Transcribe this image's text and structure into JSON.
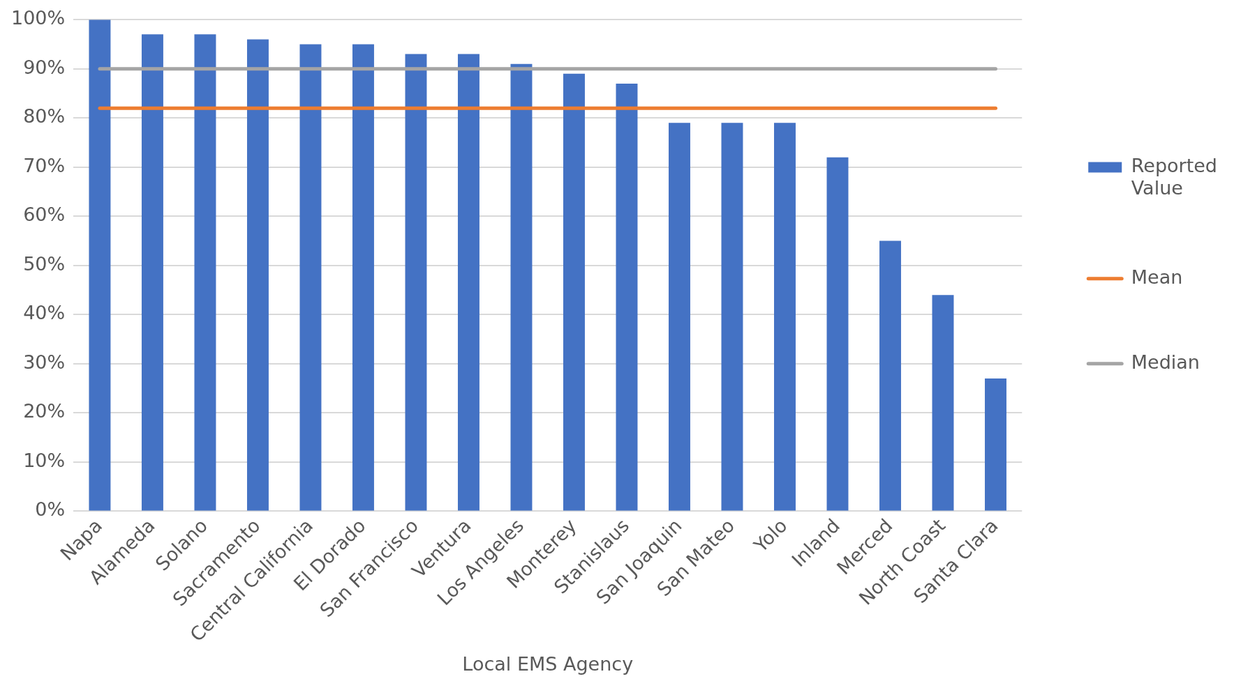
{
  "chart_data": {
    "type": "bar",
    "xlabel": "Local EMS Agency",
    "categories": [
      "Napa",
      "Alameda",
      "Solano",
      "Sacramento",
      "Central California",
      "El Dorado",
      "San Francisco",
      "Ventura",
      "Los Angeles",
      "Monterey",
      "Stanislaus",
      "San Joaquin",
      "San Mateo",
      "Yolo",
      "Inland",
      "Merced",
      "North Coast",
      "Santa Clara"
    ],
    "series": [
      {
        "name": "Reported Value",
        "color": "#4472c4",
        "values": [
          100,
          97,
          97,
          96,
          95,
          95,
          93,
          93,
          91,
          89,
          87,
          79,
          79,
          79,
          72,
          55,
          44,
          27
        ]
      },
      {
        "name": "Mean",
        "type": "line",
        "color": "#ed7d31",
        "values": [
          82,
          82,
          82,
          82,
          82,
          82,
          82,
          82,
          82,
          82,
          82,
          82,
          82,
          82,
          82,
          82,
          82,
          82
        ]
      },
      {
        "name": "Median",
        "type": "line",
        "color": "#a5a5a5",
        "values": [
          90,
          90,
          90,
          90,
          90,
          90,
          90,
          90,
          90,
          90,
          90,
          90,
          90,
          90,
          90,
          90,
          90,
          90
        ]
      }
    ],
    "ylim": [
      0,
      100
    ],
    "yticks": [
      {
        "value": 0,
        "label": "0%"
      },
      {
        "value": 10,
        "label": "10%"
      },
      {
        "value": 20,
        "label": "20%"
      },
      {
        "value": 30,
        "label": "30%"
      },
      {
        "value": 40,
        "label": "40%"
      },
      {
        "value": 50,
        "label": "50%"
      },
      {
        "value": 60,
        "label": "60%"
      },
      {
        "value": 70,
        "label": "70%"
      },
      {
        "value": 80,
        "label": "80%"
      },
      {
        "value": 90,
        "label": "90%"
      },
      {
        "value": 100,
        "label": "100%"
      }
    ],
    "grid": "y",
    "legend": "right"
  }
}
